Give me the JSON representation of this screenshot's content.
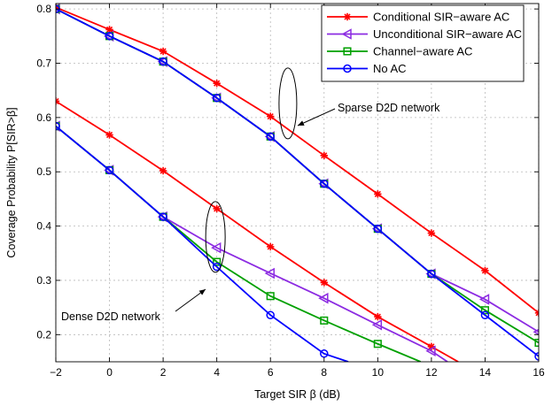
{
  "chart_data": {
    "type": "line",
    "xlabel": "Target SIR β (dB)",
    "ylabel": "Coverage Probability P[SIR>β]",
    "xlim": [
      -2,
      16
    ],
    "ylim": [
      0.15,
      0.81
    ],
    "xticks": [
      -2,
      0,
      2,
      4,
      6,
      8,
      10,
      12,
      14,
      16
    ],
    "yticks": [
      0.2,
      0.3,
      0.4,
      0.5,
      0.6,
      0.7,
      0.8
    ],
    "grid": true,
    "legend_position": "top-right",
    "series": [
      {
        "name": "Conditional SIR−aware AC",
        "color": "#ff0000",
        "marker": "star",
        "group": "sparse",
        "x": [
          -2,
          0,
          2,
          4,
          6,
          8,
          10,
          12,
          14,
          16
        ],
        "y": [
          0.803,
          0.762,
          0.722,
          0.663,
          0.602,
          0.53,
          0.459,
          0.387,
          0.318,
          0.24
        ]
      },
      {
        "name": "Unconditional SIR−aware AC",
        "color": "#8c2be2",
        "marker": "triangle-left",
        "group": "sparse",
        "x": [
          -2,
          0,
          2,
          4,
          6,
          8,
          10,
          12,
          14,
          16
        ],
        "y": [
          0.8,
          0.75,
          0.703,
          0.636,
          0.565,
          0.478,
          0.395,
          0.312,
          0.265,
          0.205
        ]
      },
      {
        "name": "Channel−aware AC",
        "color": "#00a000",
        "marker": "square",
        "group": "sparse",
        "x": [
          -2,
          0,
          2,
          4,
          6,
          8,
          10,
          12,
          14,
          16
        ],
        "y": [
          0.8,
          0.75,
          0.703,
          0.636,
          0.565,
          0.478,
          0.395,
          0.312,
          0.245,
          0.185
        ]
      },
      {
        "name": "No AC",
        "color": "#0000ff",
        "marker": "circle",
        "group": "sparse",
        "x": [
          -2,
          0,
          2,
          4,
          6,
          8,
          10,
          12,
          14,
          16
        ],
        "y": [
          0.8,
          0.75,
          0.703,
          0.636,
          0.565,
          0.478,
          0.395,
          0.312,
          0.236,
          0.16
        ]
      },
      {
        "name": "Conditional SIR−aware AC",
        "color": "#ff0000",
        "marker": "star",
        "group": "dense",
        "x": [
          -2,
          0,
          2,
          4,
          6,
          8,
          10,
          12,
          13
        ],
        "y": [
          0.63,
          0.568,
          0.502,
          0.432,
          0.362,
          0.296,
          0.233,
          0.178,
          0.15
        ]
      },
      {
        "name": "Unconditional SIR−aware AC",
        "color": "#8c2be2",
        "marker": "triangle-left",
        "group": "dense",
        "x": [
          -2,
          0,
          2,
          4,
          6,
          8,
          10,
          12,
          12.6
        ],
        "y": [
          0.584,
          0.503,
          0.417,
          0.36,
          0.313,
          0.267,
          0.218,
          0.17,
          0.15
        ]
      },
      {
        "name": "Channel−aware AC",
        "color": "#00a000",
        "marker": "square",
        "group": "dense",
        "x": [
          -2,
          0,
          2,
          4,
          6,
          8,
          10,
          11.6
        ],
        "y": [
          0.584,
          0.503,
          0.417,
          0.334,
          0.271,
          0.226,
          0.183,
          0.15
        ]
      },
      {
        "name": "No AC",
        "color": "#0000ff",
        "marker": "circle",
        "group": "dense",
        "x": [
          -2,
          0,
          2,
          4,
          6,
          8,
          8.9
        ],
        "y": [
          0.584,
          0.503,
          0.417,
          0.325,
          0.236,
          0.165,
          0.15
        ]
      }
    ],
    "legend": [
      {
        "name": "Conditional SIR−aware AC",
        "color": "#ff0000",
        "marker": "star"
      },
      {
        "name": "Unconditional SIR−aware AC",
        "color": "#8c2be2",
        "marker": "triangle-left"
      },
      {
        "name": "Channel−aware AC",
        "color": "#00a000",
        "marker": "square"
      },
      {
        "name": "No AC",
        "color": "#0000ff",
        "marker": "circle"
      }
    ],
    "annotations": [
      {
        "text": "Sparse D2D network",
        "target_x": 6.6,
        "target_y": 0.615
      },
      {
        "text": "Dense D2D network",
        "target_x": 3.9,
        "target_y": 0.33
      }
    ]
  }
}
